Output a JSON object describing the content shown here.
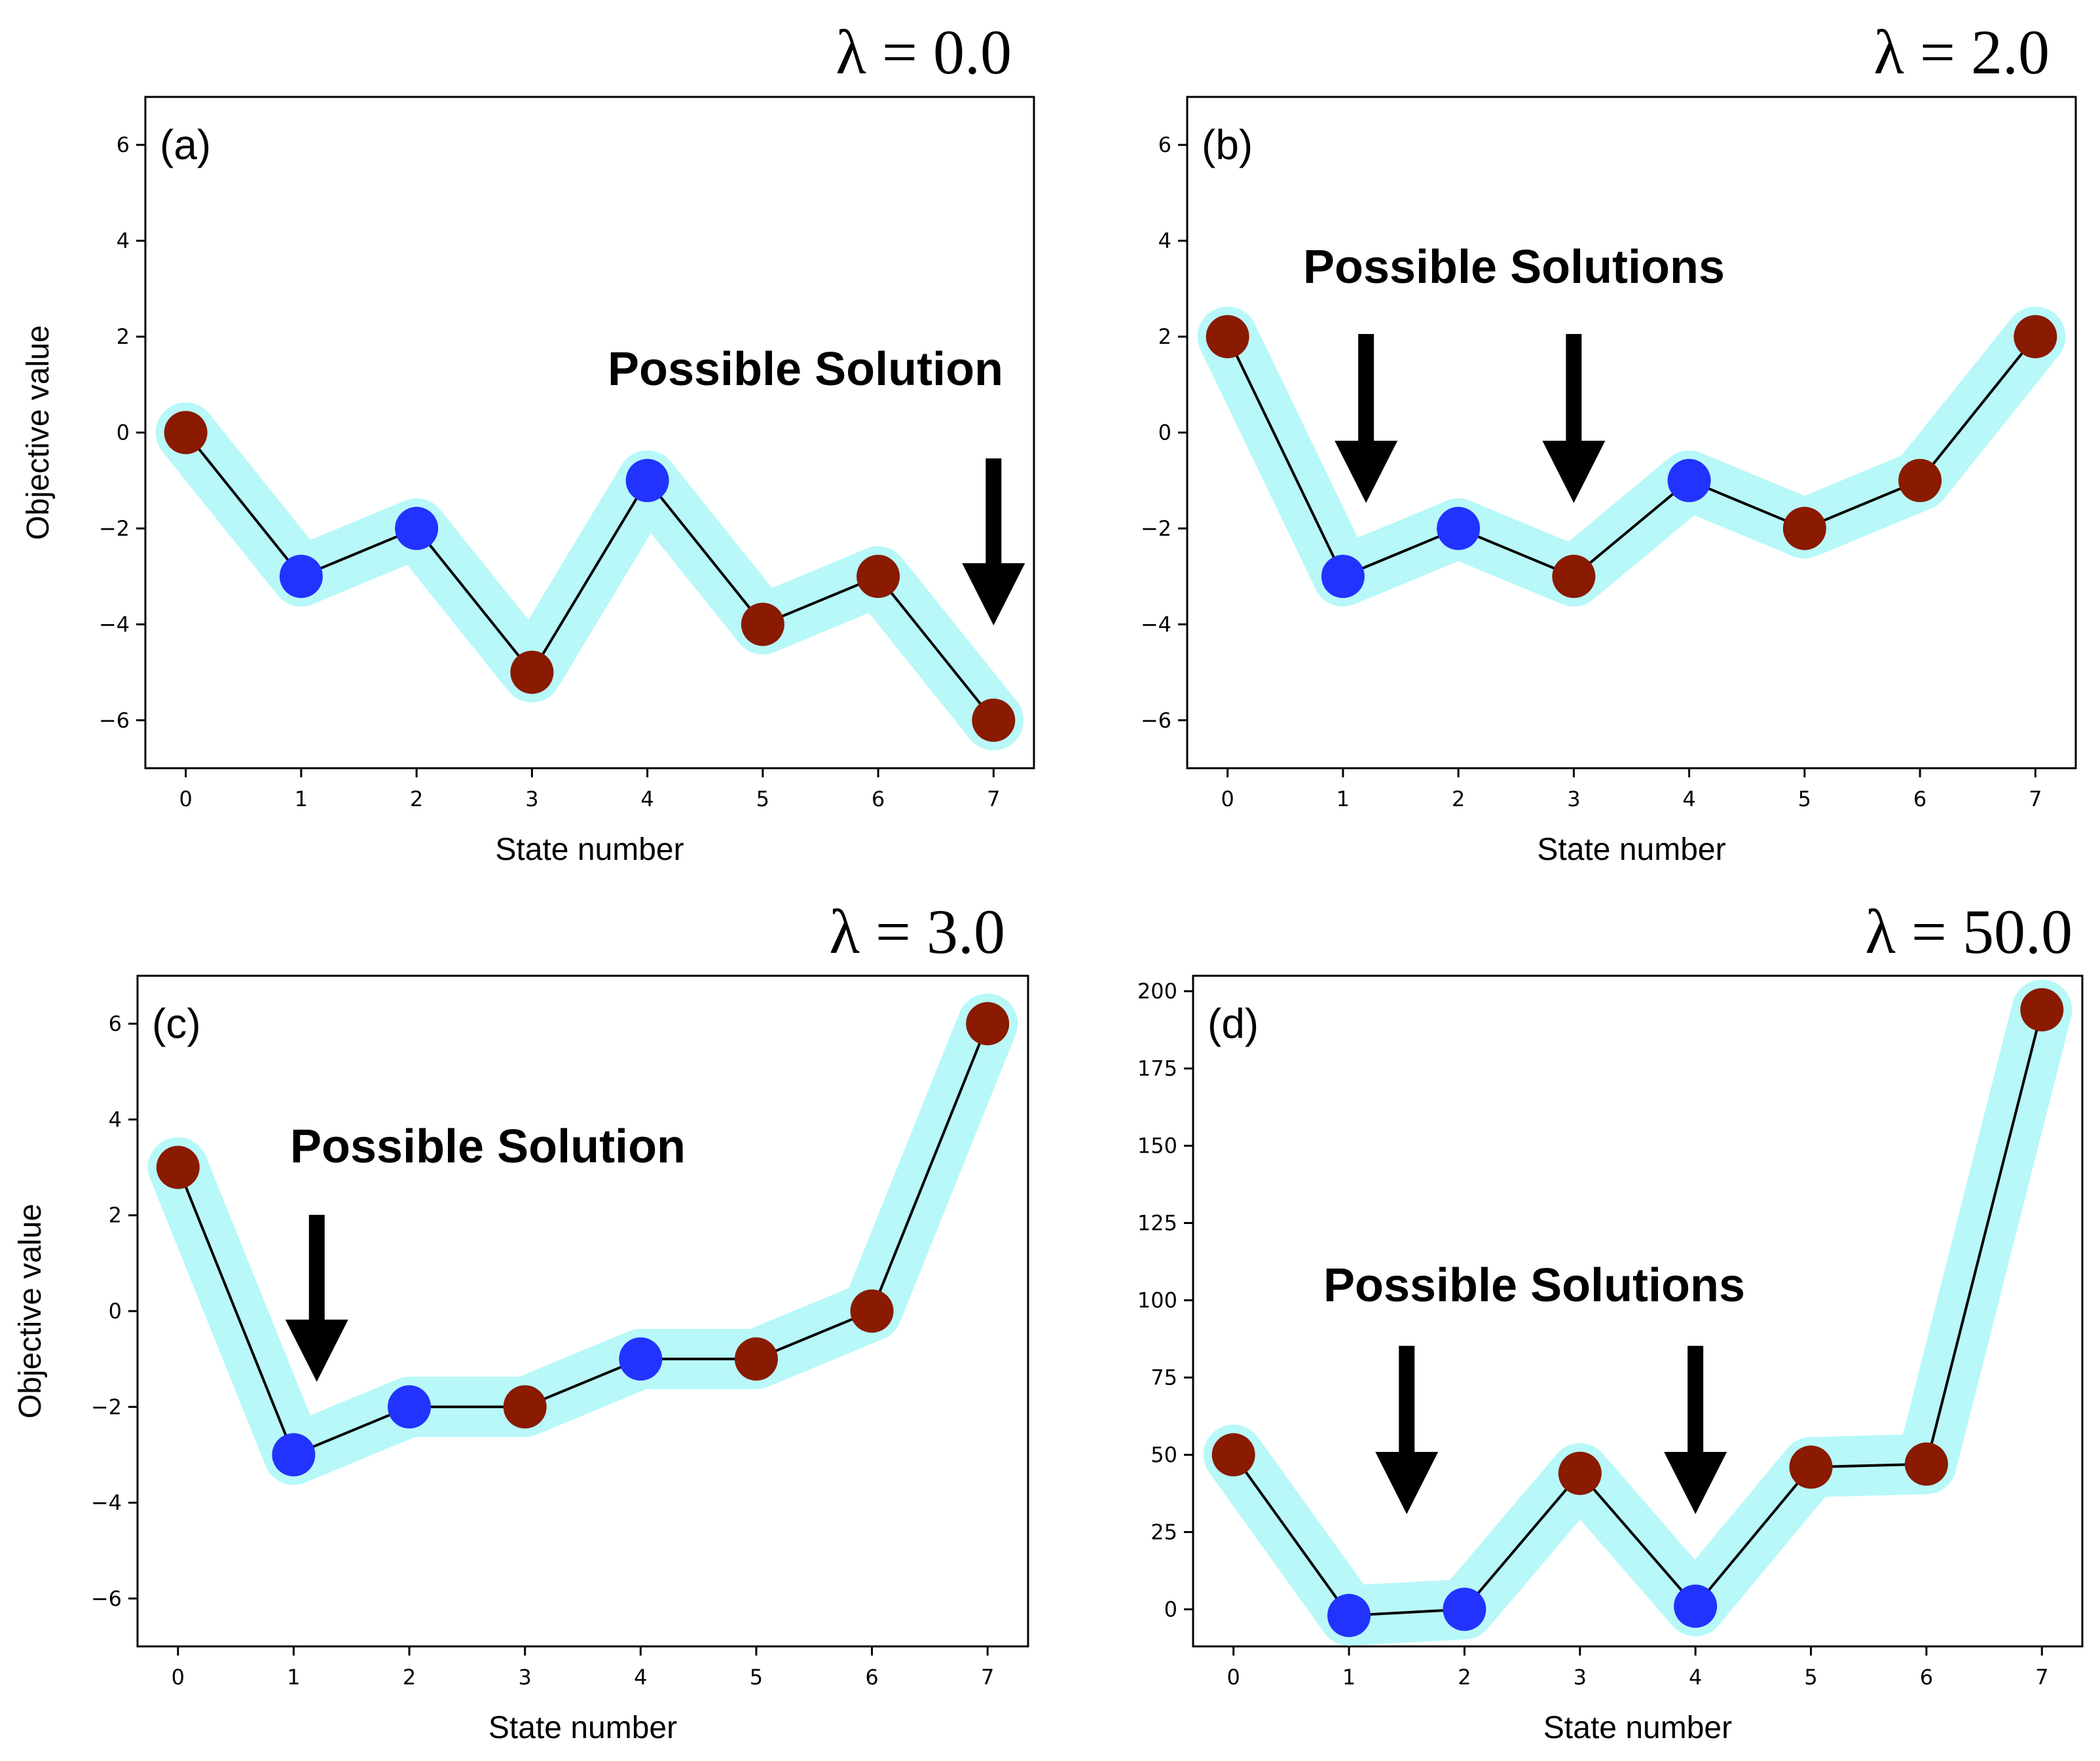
{
  "colors": {
    "highlight": "#b8f8f8",
    "blue_marker": "#2233ff",
    "red_marker": "#8a1a00",
    "line": "#000000",
    "arrow": "#000000"
  },
  "chart_data": [
    {
      "type": "line",
      "panel_label": "(a)",
      "title": "λ = 0.0",
      "xlabel": "State number",
      "ylabel": "Objective value",
      "x": [
        0,
        1,
        2,
        3,
        4,
        5,
        6,
        7
      ],
      "x_ticks": [
        "0",
        "1",
        "2",
        "3",
        "4",
        "5",
        "6",
        "7"
      ],
      "y_ticks": [
        "6",
        "4",
        "2",
        "0",
        "−2",
        "−4",
        "−6"
      ],
      "ylim": [
        -7,
        7
      ],
      "values": [
        0,
        -3,
        -2,
        -5,
        -1,
        -4,
        -3,
        -6
      ],
      "marker_colors": [
        "red",
        "blue",
        "blue",
        "red",
        "blue",
        "red",
        "red",
        "red"
      ],
      "annotation": {
        "text": "Possible Solution",
        "arrows_at_x": [
          7
        ]
      }
    },
    {
      "type": "line",
      "panel_label": "(b)",
      "title": "λ = 2.0",
      "xlabel": "State number",
      "ylabel": "",
      "x": [
        0,
        1,
        2,
        3,
        4,
        5,
        6,
        7
      ],
      "x_ticks": [
        "0",
        "1",
        "2",
        "3",
        "4",
        "5",
        "6",
        "7"
      ],
      "y_ticks": [
        "6",
        "4",
        "2",
        "0",
        "−2",
        "−4",
        "−6"
      ],
      "ylim": [
        -7,
        7
      ],
      "values": [
        2,
        -3,
        -2,
        -3,
        -1,
        -2,
        -1,
        2
      ],
      "marker_colors": [
        "red",
        "blue",
        "blue",
        "red",
        "blue",
        "red",
        "red",
        "red"
      ],
      "annotation": {
        "text": "Possible Solutions",
        "arrows_at_x": [
          1.2,
          3
        ]
      }
    },
    {
      "type": "line",
      "panel_label": "(c)",
      "title": "λ = 3.0",
      "xlabel": "State number",
      "ylabel": "Objective value",
      "x": [
        0,
        1,
        2,
        3,
        4,
        5,
        6,
        7
      ],
      "x_ticks": [
        "0",
        "1",
        "2",
        "3",
        "4",
        "5",
        "6",
        "7"
      ],
      "y_ticks": [
        "6",
        "4",
        "2",
        "0",
        "−2",
        "−4",
        "−6"
      ],
      "ylim": [
        -7,
        7
      ],
      "values": [
        3,
        -3,
        -2,
        -2,
        -1,
        -1,
        0,
        6
      ],
      "marker_colors": [
        "red",
        "blue",
        "blue",
        "red",
        "blue",
        "red",
        "red",
        "red"
      ],
      "annotation": {
        "text": "Possible Solution",
        "arrows_at_x": [
          1.2
        ]
      }
    },
    {
      "type": "line",
      "panel_label": "(d)",
      "title": "λ = 50.0",
      "xlabel": "State number",
      "ylabel": "",
      "x": [
        0,
        1,
        2,
        3,
        4,
        5,
        6,
        7
      ],
      "x_ticks": [
        "0",
        "1",
        "2",
        "3",
        "4",
        "5",
        "6",
        "7"
      ],
      "y_ticks": [
        "200",
        "175",
        "150",
        "125",
        "100",
        "75",
        "50",
        "25",
        "0"
      ],
      "ylim": [
        -12,
        205
      ],
      "values": [
        50,
        -2,
        0,
        44,
        1,
        46,
        47,
        194
      ],
      "marker_colors": [
        "red",
        "blue",
        "blue",
        "red",
        "blue",
        "red",
        "red",
        "red"
      ],
      "annotation": {
        "text": "Possible Solutions",
        "arrows_at_x": [
          1.5,
          4
        ]
      }
    }
  ]
}
